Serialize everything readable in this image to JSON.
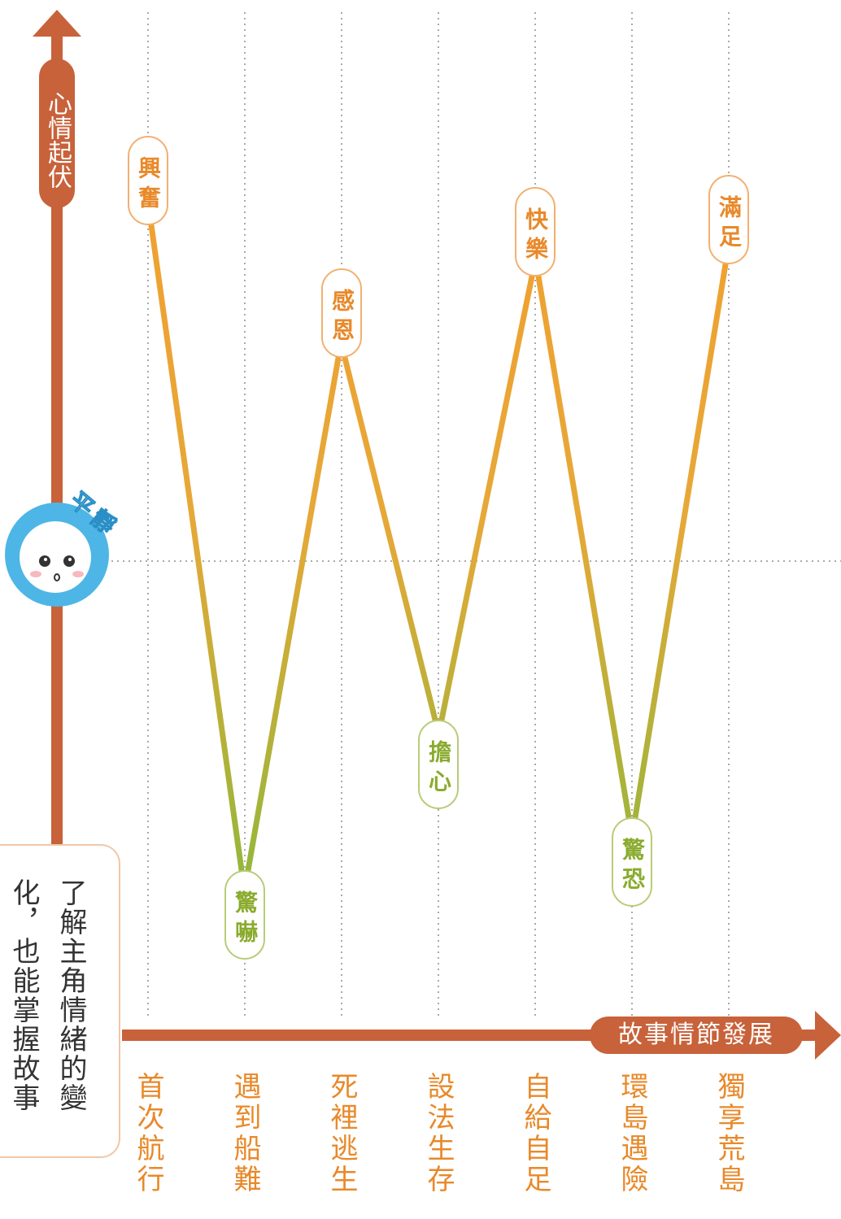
{
  "y_axis_label": "心情起伏",
  "x_axis_label": "故事情節發展",
  "baseline_badge": "平靜",
  "stages": [
    {
      "name": "首次航行",
      "emotion": "興奮"
    },
    {
      "name": "遇到船難",
      "emotion": "驚嚇"
    },
    {
      "name": "死裡逃生",
      "emotion": "感恩"
    },
    {
      "name": "設法生存",
      "emotion": "擔心"
    },
    {
      "name": "自給自足",
      "emotion": "快樂"
    },
    {
      "name": "環島遇險",
      "emotion": "驚恐"
    },
    {
      "name": "獨享荒島",
      "emotion": "滿足"
    }
  ],
  "note": "了解主角情緒的變化，也能掌握故事"
}
